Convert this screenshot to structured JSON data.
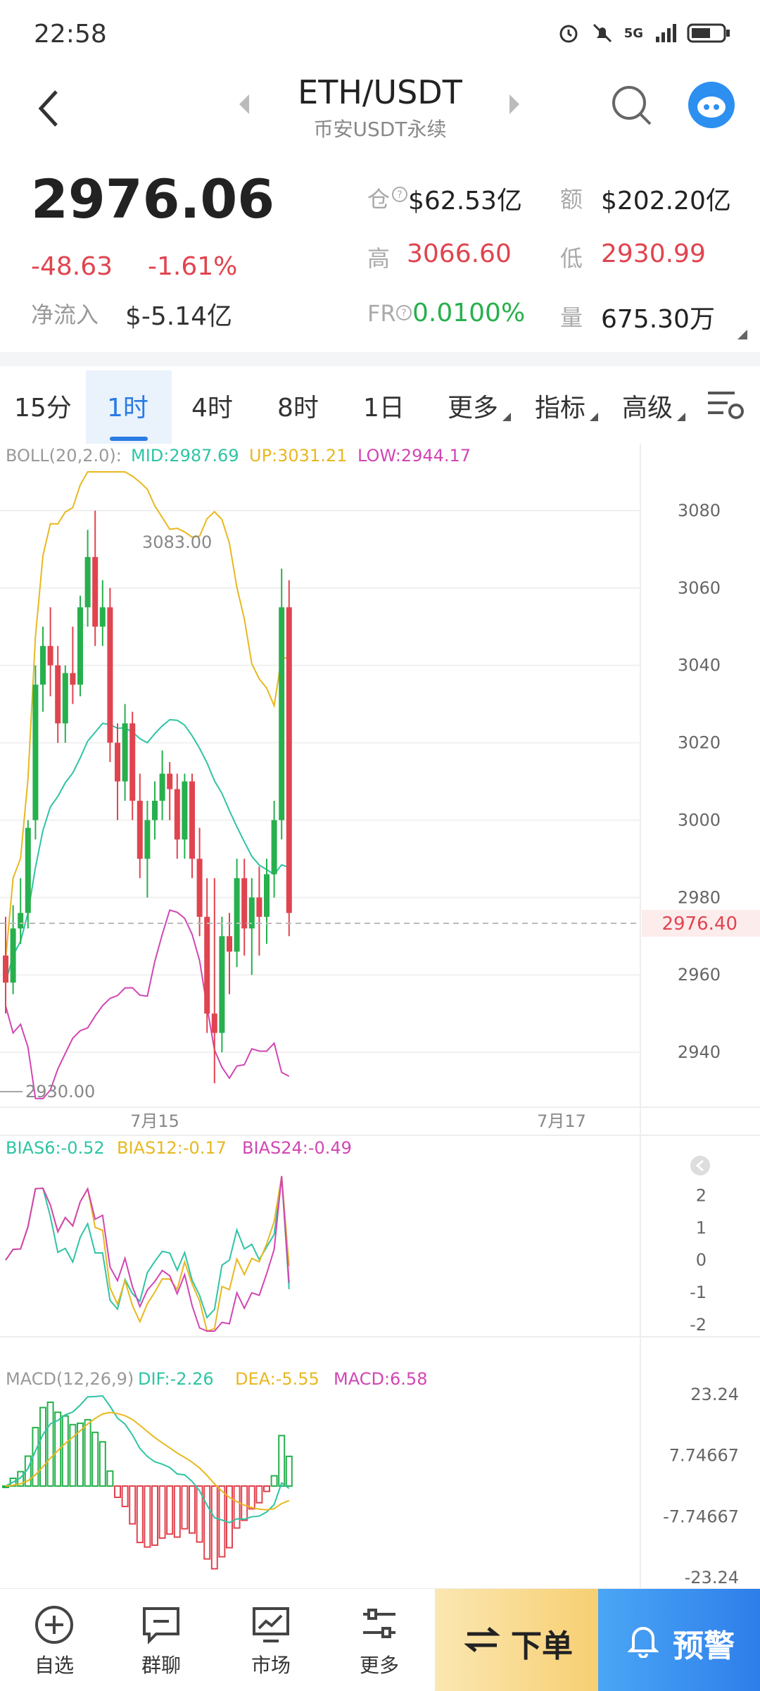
{
  "status_bar": {
    "time": "22:58",
    "network": "5G"
  },
  "header": {
    "title": "ETH/USDT",
    "subtitle": "币安USDT永续"
  },
  "ticker": {
    "last_price": "2976.06",
    "change": "-48.63",
    "change_pct": "-1.61%",
    "net_inflow_label": "净流入",
    "net_inflow_value": "$-5.14亿",
    "open_interest_label": "仓",
    "open_interest_value": "$62.53亿",
    "turnover_label": "额",
    "turnover_value": "$202.20亿",
    "high_label": "高",
    "high_value": "3066.60",
    "low_label": "低",
    "low_value": "2930.99",
    "funding_label": "FR",
    "funding_value": "0.0100%",
    "volume_label": "量",
    "volume_value": "675.30万"
  },
  "tabs": [
    {
      "label": "15分",
      "active": false
    },
    {
      "label": "1时",
      "active": true
    },
    {
      "label": "4时",
      "active": false
    },
    {
      "label": "8时",
      "active": false
    },
    {
      "label": "1日",
      "active": false
    },
    {
      "label": "更多",
      "active": false
    },
    {
      "label": "指标",
      "active": false
    },
    {
      "label": "高级",
      "active": false
    }
  ],
  "colors": {
    "up": "#27b04d",
    "down": "#e0444f",
    "mid": "#2fc4a4",
    "upper": "#e8b820",
    "lower": "#d146b4",
    "accent": "#2a7be4"
  },
  "chart_data": [
    {
      "type": "candlestick",
      "title": "ETH/USDT 1时",
      "indicator_label": "BOLL(20,2.0):",
      "indicator_mid": "MID:2987.69",
      "indicator_up": "UP:3031.21",
      "indicator_low": "LOW:2944.17",
      "y_ticks": [
        "3080",
        "3060",
        "3040",
        "3020",
        "3000",
        "2980",
        "2960",
        "2940"
      ],
      "x_ticks": [
        "7月15",
        "7月17"
      ],
      "ylim": [
        2928,
        3090
      ],
      "last_price_tag": "2976.40",
      "high_marker": "3083.00",
      "low_marker": "2930.00",
      "candles": [
        [
          2965,
          2975,
          2950,
          2958
        ],
        [
          2958,
          2978,
          2955,
          2972
        ],
        [
          2972,
          2985,
          2968,
          2976
        ],
        [
          2976,
          3000,
          2972,
          2998
        ],
        [
          3000,
          3040,
          2995,
          3035
        ],
        [
          3035,
          3050,
          3028,
          3045
        ],
        [
          3045,
          3055,
          3032,
          3040
        ],
        [
          3040,
          3045,
          3020,
          3025
        ],
        [
          3025,
          3040,
          3020,
          3038
        ],
        [
          3038,
          3050,
          3030,
          3035
        ],
        [
          3035,
          3058,
          3032,
          3055
        ],
        [
          3055,
          3075,
          3050,
          3068
        ],
        [
          3068,
          3080,
          3045,
          3050
        ],
        [
          3050,
          3062,
          3045,
          3055
        ],
        [
          3055,
          3060,
          3015,
          3020
        ],
        [
          3020,
          3025,
          3000,
          3010
        ],
        [
          3010,
          3030,
          3005,
          3025
        ],
        [
          3025,
          3028,
          3000,
          3005
        ],
        [
          3005,
          3012,
          2985,
          2990
        ],
        [
          2990,
          3005,
          2980,
          3000
        ],
        [
          3000,
          3010,
          2995,
          3005
        ],
        [
          3005,
          3018,
          3000,
          3012
        ],
        [
          3012,
          3015,
          3000,
          3008
        ],
        [
          3008,
          3012,
          2990,
          2995
        ],
        [
          2995,
          3012,
          2990,
          3010
        ],
        [
          3010,
          3012,
          2985,
          2990
        ],
        [
          2990,
          2998,
          2970,
          2975
        ],
        [
          2975,
          2985,
          2945,
          2950
        ],
        [
          2950,
          2985,
          2932,
          2945
        ],
        [
          2945,
          2975,
          2940,
          2970
        ],
        [
          2970,
          2976,
          2955,
          2966
        ],
        [
          2966,
          2990,
          2962,
          2985
        ],
        [
          2985,
          2990,
          2965,
          2972
        ],
        [
          2972,
          2985,
          2960,
          2980
        ],
        [
          2980,
          2988,
          2965,
          2975
        ],
        [
          2975,
          2990,
          2968,
          2986
        ],
        [
          2986,
          3005,
          2980,
          3000
        ],
        [
          3000,
          3065,
          2995,
          3055
        ],
        [
          3055,
          3062,
          2970,
          2976
        ]
      ]
    },
    {
      "type": "line",
      "title": "BIAS",
      "series": [
        {
          "name": "BIAS6:-0.52"
        },
        {
          "name": "BIAS12:-0.17"
        },
        {
          "name": "BIAS24:-0.49"
        }
      ],
      "y_ticks": [
        "2",
        "1",
        "0",
        "-1",
        "-2"
      ],
      "ylim": [
        -2.2,
        2.6
      ]
    },
    {
      "type": "bar",
      "title": "MACD(12,26,9)",
      "series": [
        {
          "name": "DIF:-2.26"
        },
        {
          "name": "DEA:-5.55"
        },
        {
          "name": "MACD:6.58"
        }
      ],
      "y_ticks": [
        "23.24",
        "7.74667",
        "-7.74667",
        "-23.24"
      ],
      "ylim": [
        -23.24,
        23.24
      ]
    }
  ],
  "bottom_nav": [
    {
      "label": "自选",
      "icon": "add-circle-icon"
    },
    {
      "label": "群聊",
      "icon": "chat-icon"
    },
    {
      "label": "市场",
      "icon": "market-chart-icon"
    },
    {
      "label": "更多",
      "icon": "more-sliders-icon"
    }
  ],
  "actions": {
    "order_label": "下单",
    "alert_label": "预警"
  }
}
